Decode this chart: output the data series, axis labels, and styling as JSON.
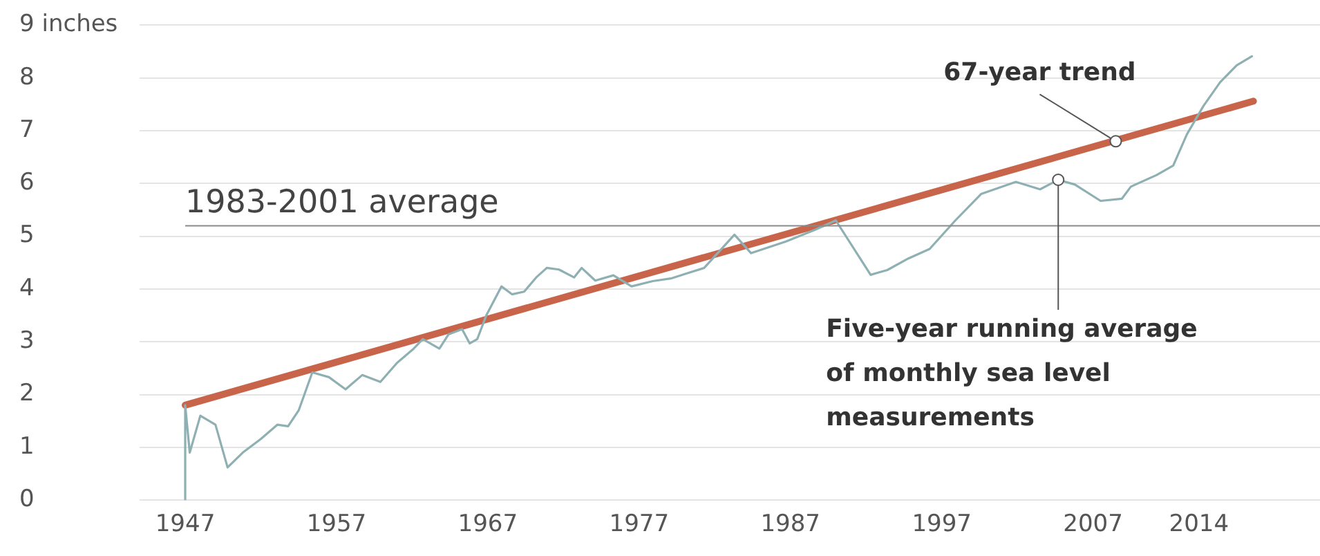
{
  "chart_data": {
    "type": "line",
    "xlim": [
      1944,
      2022
    ],
    "xticks": [
      1947,
      1957,
      1967,
      1977,
      1987,
      1997,
      2007,
      2014
    ],
    "ylim": [
      0,
      9
    ],
    "yticks": [
      0,
      1,
      2,
      3,
      4,
      5,
      6,
      7,
      {
        "value": 9,
        "label": "9 inches"
      },
      8
    ],
    "grid": "y",
    "legend": false,
    "marker": "none",
    "ref_lines": [
      {
        "axis": "y",
        "value": 5.2,
        "label": "1983-2001 average",
        "color": "#8a8a8a"
      }
    ],
    "annotations": [
      {
        "text": "67-year trend",
        "x": 2008.5,
        "y": 6.8
      },
      {
        "text": "Five-year running average of monthly sea level measurements",
        "x": 2004.7,
        "y": 6.07
      }
    ],
    "series": [
      {
        "color": "#8fb0b3",
        "x": [
          1947,
          1947,
          1947.3,
          1948,
          1949,
          1949.8,
          1950.8,
          1952,
          1953.1,
          1953.8,
          1954.5,
          1955.4,
          1956.5,
          1957.6,
          1958.7,
          1959.9,
          1961,
          1962.1,
          1962.7,
          1963.8,
          1964.4,
          1965.3,
          1965.8,
          1966.3,
          1966.9,
          1967.9,
          1968.6,
          1969.4,
          1970.2,
          1970.9,
          1971.7,
          1972.7,
          1973.2,
          1974.1,
          1975.3,
          1976.5,
          1977.9,
          1979.1,
          1980.2,
          1981.3,
          1983.3,
          1984.4,
          1986.7,
          1988.6,
          1990,
          1992.3,
          1993.4,
          1994.8,
          1996.2,
          1997.9,
          1999.6,
          2001.9,
          2003.5,
          2004.7,
          2005.8,
          2007.5,
          2008.9,
          2009.5,
          2011.2,
          2012.3,
          2013.2,
          2014.3,
          2015.4,
          2016.5,
          2017.5
        ],
        "values": [
          0,
          1.8,
          0.9,
          1.6,
          1.43,
          0.62,
          0.9,
          1.16,
          1.43,
          1.4,
          1.7,
          2.42,
          2.33,
          2.1,
          2.37,
          2.24,
          2.6,
          2.87,
          3.05,
          2.87,
          3.14,
          3.24,
          2.97,
          3.05,
          3.5,
          4.05,
          3.9,
          3.95,
          4.22,
          4.4,
          4.37,
          4.22,
          4.4,
          4.16,
          4.26,
          4.05,
          4.15,
          4.2,
          4.3,
          4.4,
          5.03,
          4.68,
          4.9,
          5.12,
          5.3,
          4.27,
          4.36,
          4.58,
          4.76,
          5.3,
          5.8,
          6.03,
          5.89,
          6.07,
          5.98,
          5.67,
          5.71,
          5.94,
          6.16,
          6.34,
          6.93,
          7.47,
          7.92,
          8.24,
          8.41
        ]
      },
      {
        "color": "#c8644a",
        "x": [
          1947,
          2017.6
        ],
        "values": [
          1.8,
          7.56
        ]
      }
    ]
  }
}
